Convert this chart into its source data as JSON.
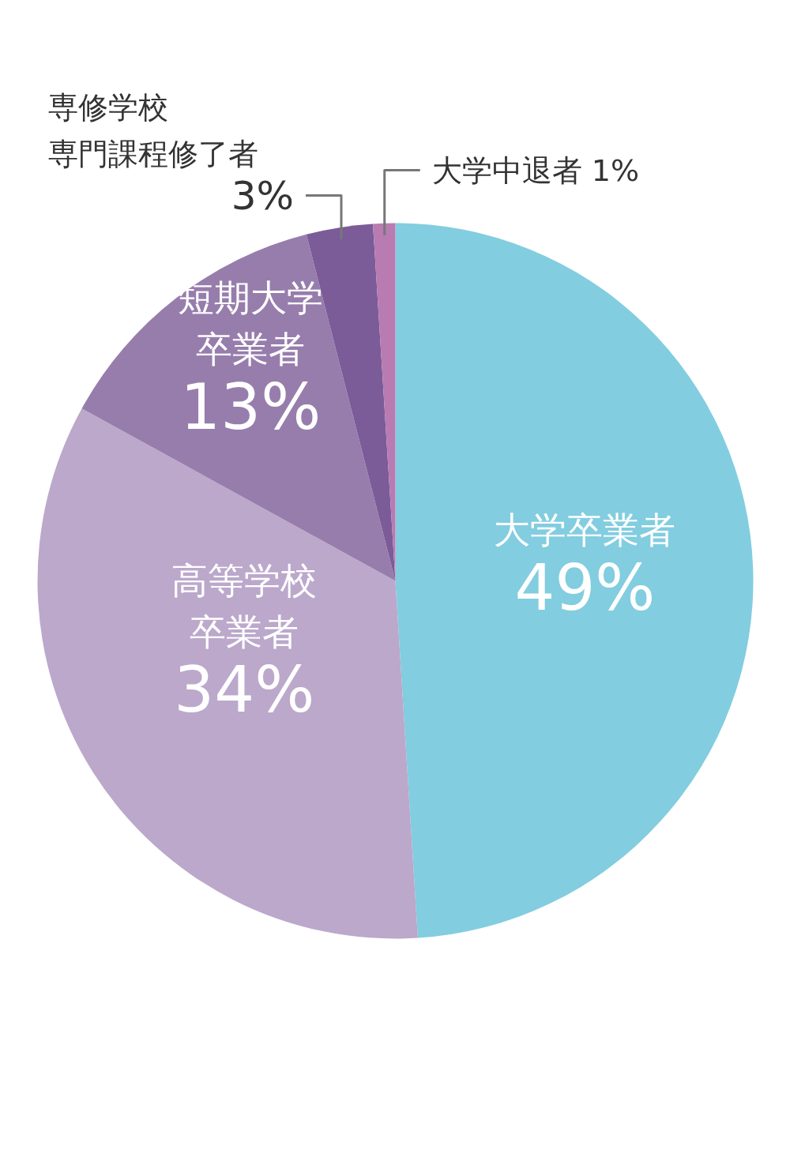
{
  "chart_data": {
    "type": "pie",
    "categories": [
      "大学卒業者",
      "高等学校卒業者",
      "短期大学卒業者",
      "専修学校専門課程修了者",
      "大学中退者"
    ],
    "values": [
      49,
      34,
      13,
      3,
      1
    ],
    "colors": [
      "#82cde0",
      "#bba8cb",
      "#977dac",
      "#7b5b98",
      "#b87bb2"
    ],
    "value_labels": [
      "49%",
      "34%",
      "13%",
      "3%",
      "1%"
    ]
  }
}
